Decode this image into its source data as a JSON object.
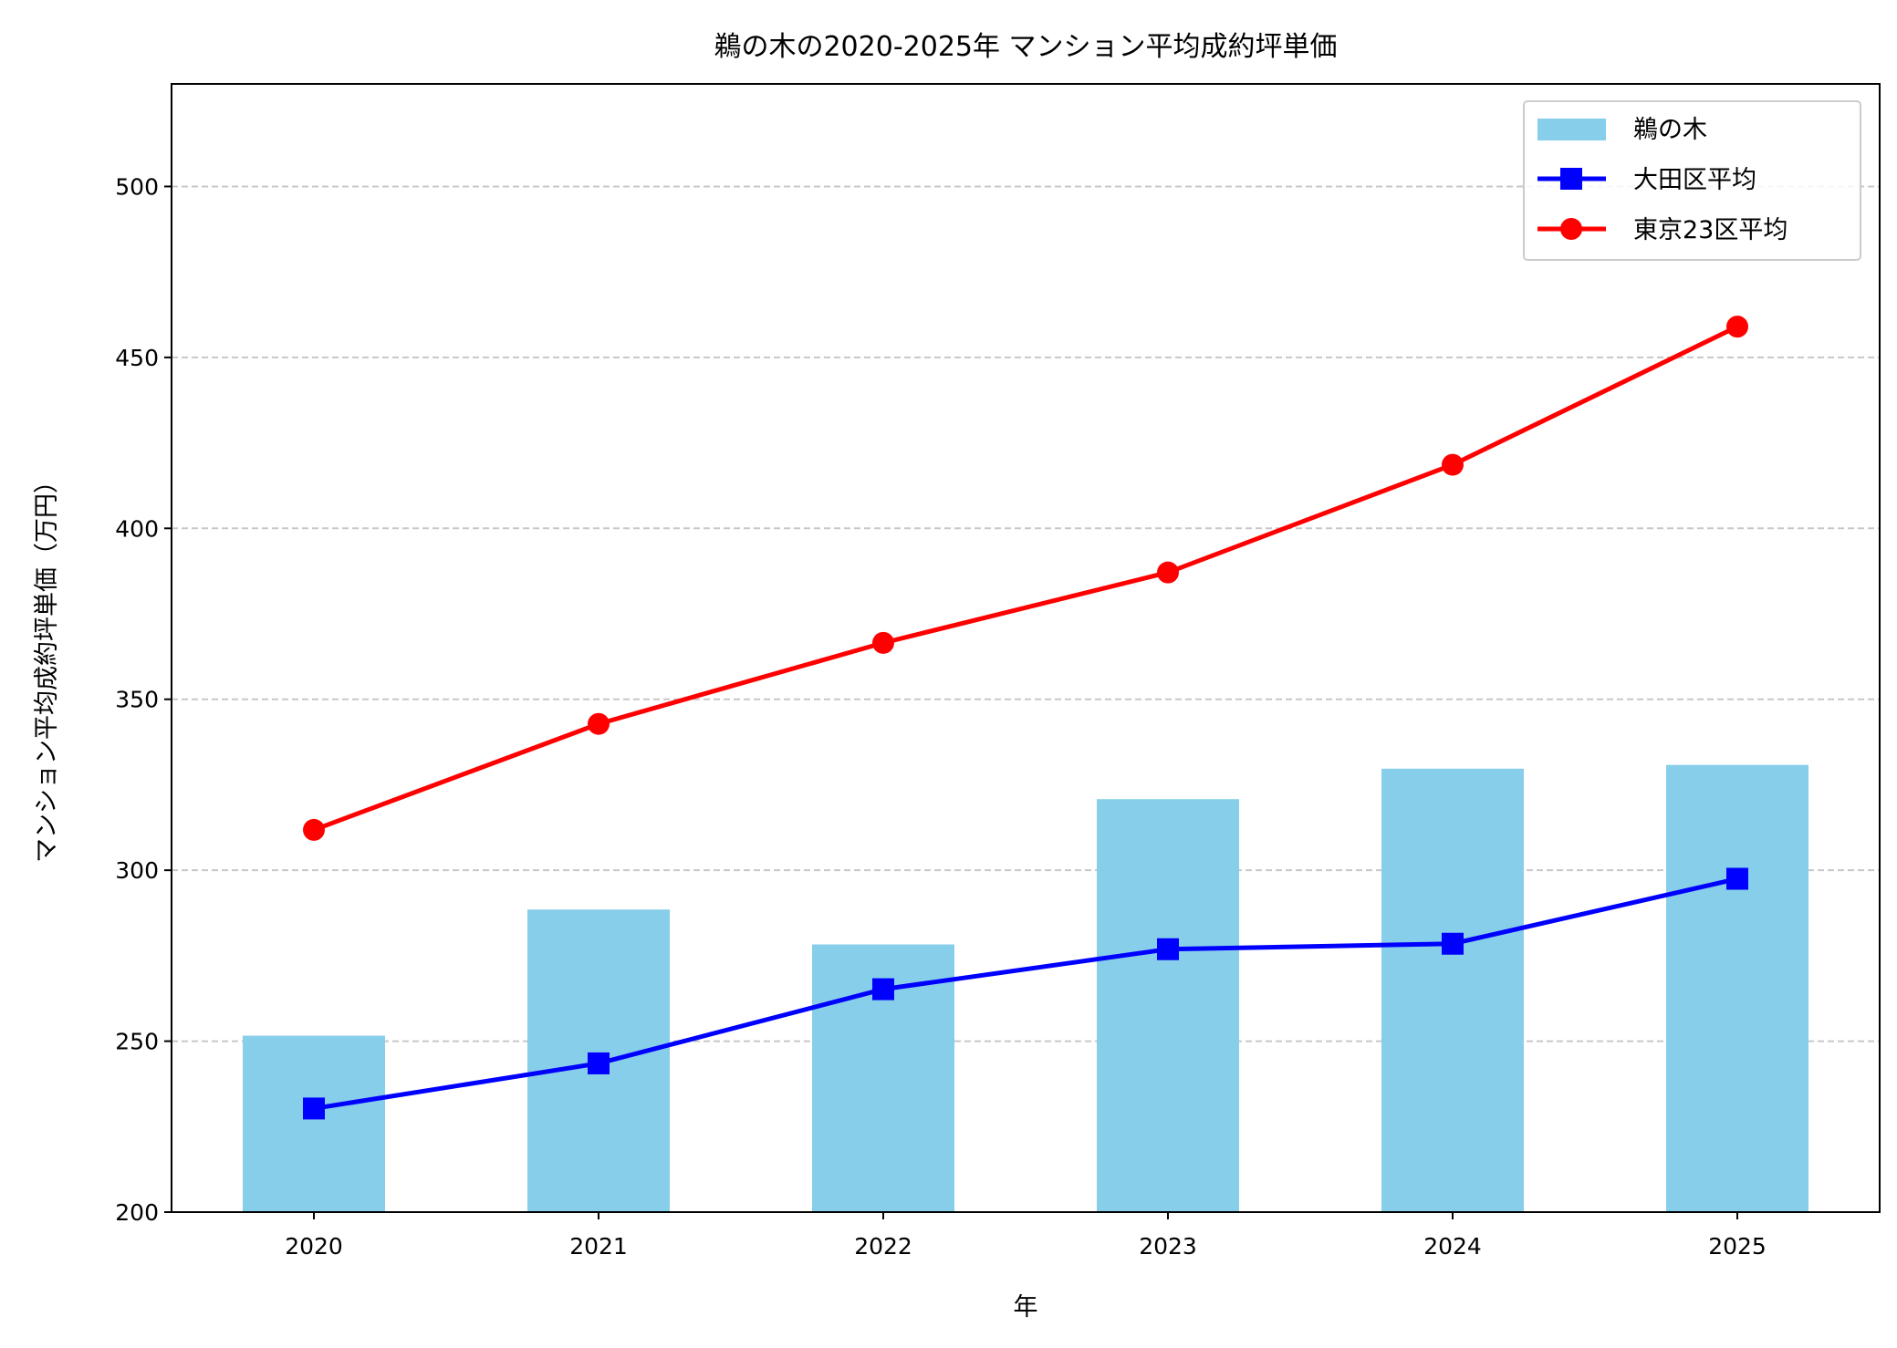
{
  "chart_data": {
    "type": "bar+line",
    "title": "鵜の木の2020-2025年 マンション平均成約坪単価",
    "xlabel": "年",
    "ylabel": "マンション平均成約坪単価（万円）",
    "categories": [
      "2020",
      "2021",
      "2022",
      "2023",
      "2024",
      "2025"
    ],
    "ylim": [
      200,
      530
    ],
    "yticks": [
      200,
      250,
      300,
      350,
      400,
      450,
      500
    ],
    "grid": "y-dashed",
    "legend_position": "top-right",
    "series": [
      {
        "name": "鵜の木",
        "type": "bar",
        "color": "#87CEEB",
        "values": [
          251.6,
          288.5,
          278.3,
          320.8,
          329.7,
          330.8
        ]
      },
      {
        "name": "大田区平均",
        "type": "line",
        "marker": "square",
        "color": "#0000FF",
        "values": [
          230.3,
          243.5,
          265.2,
          276.9,
          278.5,
          297.5
        ]
      },
      {
        "name": "東京23区平均",
        "type": "line",
        "marker": "circle",
        "color": "#FF0000",
        "values": [
          311.8,
          342.8,
          366.5,
          387.1,
          418.6,
          459.0
        ]
      }
    ]
  }
}
